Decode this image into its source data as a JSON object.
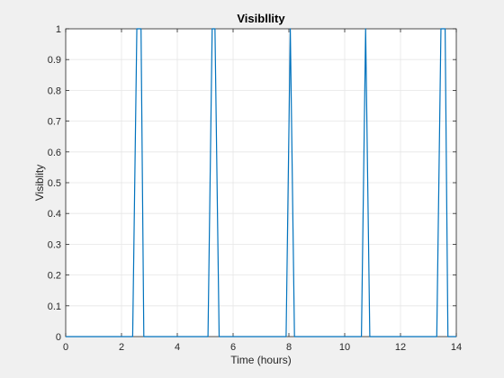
{
  "chart_data": {
    "type": "line",
    "title": "Visibllity",
    "xlabel": "Time (hours)",
    "ylabel": "Visiblity",
    "xlim": [
      0,
      14
    ],
    "ylim": [
      0,
      1
    ],
    "xticks": [
      0,
      2,
      4,
      6,
      8,
      10,
      12,
      14
    ],
    "yticks": [
      0,
      0.1,
      0.2,
      0.3,
      0.4,
      0.5,
      0.6,
      0.7,
      0.8,
      0.9,
      1
    ],
    "grid": true,
    "legend": "none",
    "series": [
      {
        "color": "#0072bd",
        "x": [
          0,
          2.4,
          2.55,
          2.7,
          2.8,
          5.1,
          5.25,
          5.35,
          5.5,
          7.9,
          8.05,
          8.2,
          10.6,
          10.75,
          10.9,
          13.3,
          13.45,
          13.6,
          13.7,
          14
        ],
        "y": [
          0,
          0,
          1,
          1,
          0,
          0,
          1,
          1,
          0,
          0,
          1,
          0,
          0,
          1,
          0,
          0,
          1,
          1,
          0,
          0
        ]
      }
    ]
  }
}
